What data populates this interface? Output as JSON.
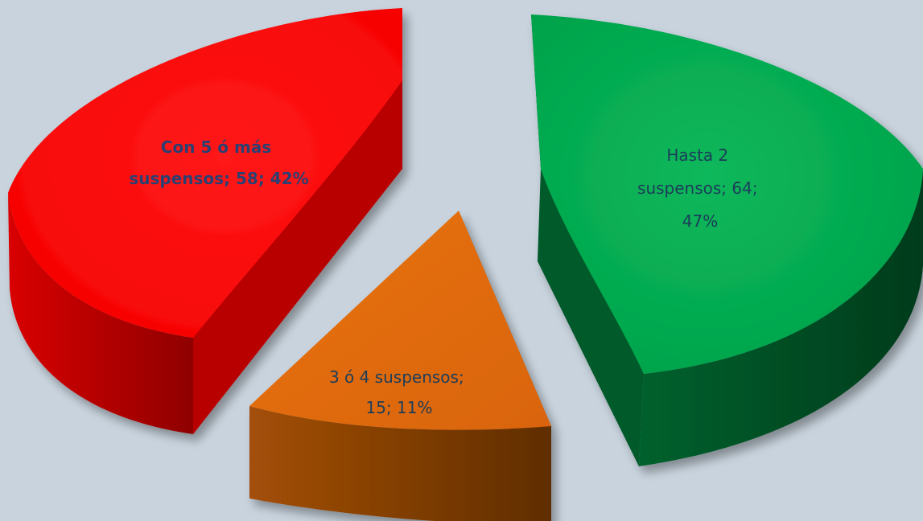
{
  "chart_data": {
    "type": "pie",
    "title": "",
    "style": "3d-exploded",
    "slices": [
      {
        "category": "Hasta 2 suspensos",
        "value": 64,
        "percent": 47,
        "color": "#00a84f",
        "side_color": "#004d24",
        "label_lines": [
          "Hasta 2",
          "suspensos; 64;",
          "47%"
        ],
        "bold": false
      },
      {
        "category": "3 ó 4 suspensos",
        "value": 15,
        "percent": 11,
        "color": "#e06a0c",
        "side_color": "#7a3a05",
        "label_lines": [
          "3 ó 4 suspensos;",
          "15; 11%"
        ],
        "bold": false
      },
      {
        "category": "Con 5 ó más suspensos",
        "value": 58,
        "percent": 42,
        "color": "#ff0000",
        "side_color": "#a80000",
        "label_lines": [
          "Con 5 ó más",
          "suspensos; 58; 42%"
        ],
        "bold": true
      }
    ],
    "legend": "none",
    "background": "#c8d3dd"
  }
}
